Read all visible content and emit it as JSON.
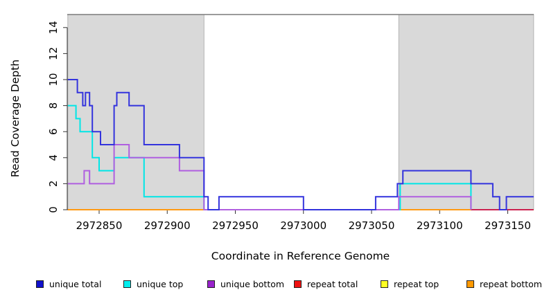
{
  "figure_title": "",
  "axes": {
    "x": {
      "label": "Coordinate in Reference Genome",
      "ticks": [
        2972850,
        2972900,
        2972950,
        2973000,
        2973050,
        2973100,
        2973150
      ],
      "range": [
        2972826,
        2973170
      ]
    },
    "y": {
      "label": "Read Coverage Depth",
      "ticks": [
        0,
        2,
        4,
        6,
        8,
        10,
        12,
        14
      ],
      "range": [
        0,
        15
      ]
    }
  },
  "chart_data": {
    "type": "line",
    "subtype": "step-coverage",
    "title": "",
    "xlabel": "Coordinate in Reference Genome",
    "ylabel": "Read Coverage Depth",
    "xlim": [
      2972826,
      2973170
    ],
    "ylim": [
      0,
      15
    ],
    "grid": false,
    "legend_position": "bottom",
    "repeat_regions": [
      {
        "start": 2972827,
        "end": 2972927
      },
      {
        "start": 2973070,
        "end": 2973169
      }
    ],
    "series": [
      {
        "name": "repeat-top",
        "label": "repeat top",
        "color": "#eded00",
        "segments": [
          {
            "points": [
              [
                2972827,
                0
              ]
            ],
            "end": 2972927
          },
          {
            "points": [
              [
                2973070,
                0
              ]
            ],
            "end": 2973169
          }
        ]
      },
      {
        "name": "repeat-total",
        "label": "repeat total",
        "color": "#cc2250",
        "segments": [
          {
            "points": [
              [
                2972827,
                0
              ]
            ],
            "end": 2972927
          },
          {
            "points": [
              [
                2973070,
                0
              ]
            ],
            "end": 2973169
          }
        ]
      },
      {
        "name": "repeat-bottom",
        "label": "repeat bottom",
        "color": "#ff9911",
        "segments": [
          {
            "points": [
              [
                2972827,
                0
              ]
            ],
            "end": 2972927
          },
          {
            "points": [
              [
                2973070,
                0
              ]
            ],
            "end": 2973123
          }
        ]
      },
      {
        "name": "unique-top",
        "label": "unique top",
        "color": "#00e6e6",
        "segments": [
          {
            "points": [
              [
                2972827,
                8
              ],
              [
                2972833,
                7
              ],
              [
                2972836,
                6
              ],
              [
                2972845,
                4
              ],
              [
                2972850,
                3
              ],
              [
                2972861,
                4
              ],
              [
                2972883,
                1
              ],
              [
                2972927,
                0
              ],
              [
                2973071,
                2
              ],
              [
                2973123,
                0
              ]
            ],
            "end": 2973123
          }
        ]
      },
      {
        "name": "baseline-artifact",
        "label": "",
        "color": "#9bcd9b",
        "segments": [
          {
            "points": [
              [
                2972927,
                0
              ]
            ],
            "end": 2973070
          }
        ]
      },
      {
        "name": "unique-bottom",
        "label": "unique bottom",
        "color": "#b05fe0",
        "segments": [
          {
            "points": [
              [
                2972827,
                2
              ],
              [
                2972839,
                3
              ],
              [
                2972843,
                2
              ],
              [
                2972861,
                5
              ],
              [
                2972872,
                4
              ],
              [
                2972909,
                3
              ],
              [
                2972927,
                0
              ],
              [
                2973070,
                1
              ],
              [
                2973123,
                0
              ]
            ],
            "end": 2973123
          }
        ]
      },
      {
        "name": "unique-total",
        "label": "unique total",
        "color": "#3333dd",
        "segments": [
          {
            "points": [
              [
                2972827,
                10
              ],
              [
                2972834,
                9
              ],
              [
                2972838,
                8
              ],
              [
                2972840,
                9
              ],
              [
                2972843,
                8
              ],
              [
                2972845,
                6
              ],
              [
                2972851,
                5
              ],
              [
                2972861,
                8
              ],
              [
                2972863,
                9
              ],
              [
                2972872,
                8
              ],
              [
                2972883,
                5
              ],
              [
                2972909,
                4
              ],
              [
                2972927,
                1
              ],
              [
                2972930,
                0
              ],
              [
                2972938,
                1
              ],
              [
                2973000,
                0
              ],
              [
                2973053,
                1
              ],
              [
                2973069,
                2
              ],
              [
                2973073,
                3
              ],
              [
                2973123,
                2
              ],
              [
                2973139,
                1
              ],
              [
                2973144,
                0
              ],
              [
                2973149,
                1
              ]
            ],
            "end": 2973169
          }
        ]
      }
    ]
  },
  "colors": {
    "region_fill": "#d9d9d9",
    "region_border": "#b3b3b3",
    "plot_top_border": "#7a7a7a",
    "axis_line": "#333333",
    "tick_text": "#000000"
  },
  "legend": {
    "items": [
      {
        "label": "unique total",
        "color": "#1111cc"
      },
      {
        "label": "unique top",
        "color": "#00eeee"
      },
      {
        "label": "unique bottom",
        "color": "#9922cc"
      },
      {
        "label": "repeat total",
        "color": "#ee1111"
      },
      {
        "label": "repeat top",
        "color": "#ffff22"
      },
      {
        "label": "repeat bottom",
        "color": "#ff9900"
      }
    ]
  }
}
